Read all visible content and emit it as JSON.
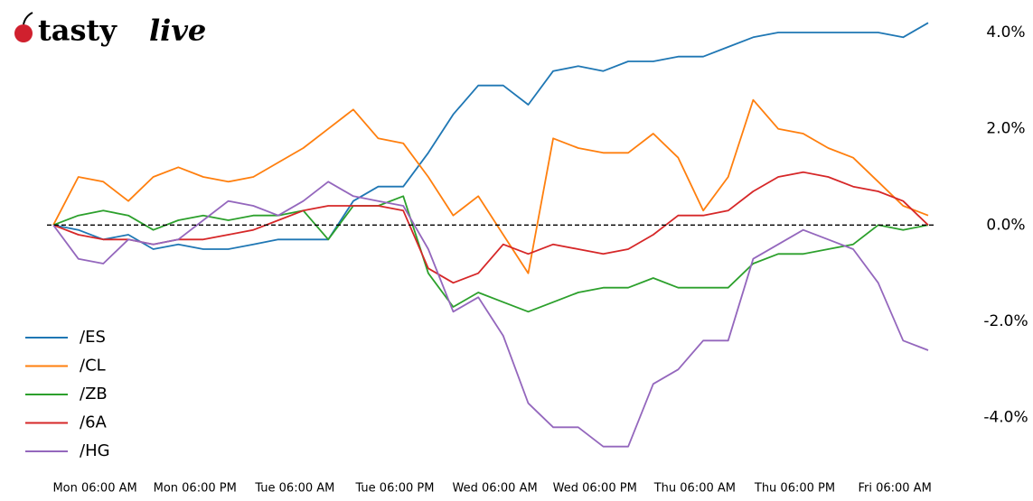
{
  "logo": {
    "bold": "tasty",
    "italic": "live"
  },
  "chart_data": {
    "type": "line",
    "x": [
      1,
      4,
      7,
      10,
      13,
      16,
      19,
      22,
      25,
      28,
      31,
      34,
      37,
      40,
      43,
      46,
      49,
      52,
      55,
      58,
      61,
      64,
      67,
      70,
      73,
      76,
      79,
      82,
      85,
      88,
      91,
      94,
      97,
      100,
      103,
      106
    ],
    "xlim": [
      1,
      106
    ],
    "xticks": [
      {
        "value": 6,
        "label": "Mon 06:00 AM"
      },
      {
        "value": 18,
        "label": "Mon 06:00 PM"
      },
      {
        "value": 30,
        "label": "Tue 06:00 AM"
      },
      {
        "value": 42,
        "label": "Tue 06:00 PM"
      },
      {
        "value": 54,
        "label": "Wed 06:00 AM"
      },
      {
        "value": 66,
        "label": "Wed 06:00 PM"
      },
      {
        "value": 78,
        "label": "Thu 06:00 AM"
      },
      {
        "value": 90,
        "label": "Thu 06:00 PM"
      },
      {
        "value": 102,
        "label": "Fri 06:00 AM"
      }
    ],
    "ylim": [
      -5,
      4.3
    ],
    "yticks": [
      {
        "value": -4,
        "label": "-4.0%"
      },
      {
        "value": -2,
        "label": "-2.0%"
      },
      {
        "value": 0,
        "label": "0.0%"
      },
      {
        "value": 2,
        "label": "2.0%"
      },
      {
        "value": 4,
        "label": "4.0%"
      }
    ],
    "reference_line": 0,
    "legend": "lower left",
    "series": [
      {
        "name": "/ES",
        "color": "#1f77b4",
        "values": [
          0,
          -0.1,
          -0.3,
          -0.2,
          -0.5,
          -0.4,
          -0.5,
          -0.5,
          -0.4,
          -0.3,
          -0.3,
          -0.3,
          0.5,
          0.8,
          0.8,
          1.5,
          2.3,
          2.9,
          2.9,
          2.5,
          3.2,
          3.3,
          3.2,
          3.4,
          3.4,
          3.5,
          3.5,
          3.7,
          3.9,
          4.0,
          4.0,
          4.0,
          4.0,
          4.0,
          3.9,
          4.2
        ]
      },
      {
        "name": "/CL",
        "color": "#ff7f0e",
        "values": [
          0,
          1.0,
          0.9,
          0.5,
          1.0,
          1.2,
          1.0,
          0.9,
          1.0,
          1.3,
          1.6,
          2.0,
          2.4,
          1.8,
          1.7,
          1.0,
          0.2,
          0.6,
          -0.2,
          -1.0,
          1.8,
          1.6,
          1.5,
          1.5,
          1.9,
          1.4,
          0.3,
          1.0,
          2.6,
          2.0,
          1.9,
          1.6,
          1.4,
          0.9,
          0.4,
          0.2
        ]
      },
      {
        "name": "/ZB",
        "color": "#2ca02c",
        "values": [
          0,
          0.2,
          0.3,
          0.2,
          -0.1,
          0.1,
          0.2,
          0.1,
          0.2,
          0.2,
          0.3,
          -0.3,
          0.4,
          0.4,
          0.6,
          -1.0,
          -1.7,
          -1.4,
          -1.6,
          -1.8,
          -1.6,
          -1.4,
          -1.3,
          -1.3,
          -1.1,
          -1.3,
          -1.3,
          -1.3,
          -0.8,
          -0.6,
          -0.6,
          -0.5,
          -0.4,
          0,
          -0.1,
          0
        ]
      },
      {
        "name": "/6A",
        "color": "#d62728",
        "values": [
          0,
          -0.2,
          -0.3,
          -0.3,
          -0.4,
          -0.3,
          -0.3,
          -0.2,
          -0.1,
          0.1,
          0.3,
          0.4,
          0.4,
          0.4,
          0.3,
          -0.9,
          -1.2,
          -1.0,
          -0.4,
          -0.6,
          -0.4,
          -0.5,
          -0.6,
          -0.5,
          -0.2,
          0.2,
          0.2,
          0.3,
          0.7,
          1.0,
          1.1,
          1.0,
          0.8,
          0.7,
          0.5,
          0
        ]
      },
      {
        "name": "/HG",
        "color": "#9467bd",
        "values": [
          0,
          -0.7,
          -0.8,
          -0.3,
          -0.4,
          -0.3,
          0.1,
          0.5,
          0.4,
          0.2,
          0.5,
          0.9,
          0.6,
          0.5,
          0.4,
          -0.5,
          -1.8,
          -1.5,
          -2.3,
          -3.7,
          -4.2,
          -4.2,
          -4.6,
          -4.6,
          -3.3,
          -3.0,
          -2.4,
          -2.4,
          -0.7,
          -0.4,
          -0.1,
          -0.3,
          -0.5,
          -1.2,
          -2.4,
          -2.6
        ]
      }
    ]
  }
}
